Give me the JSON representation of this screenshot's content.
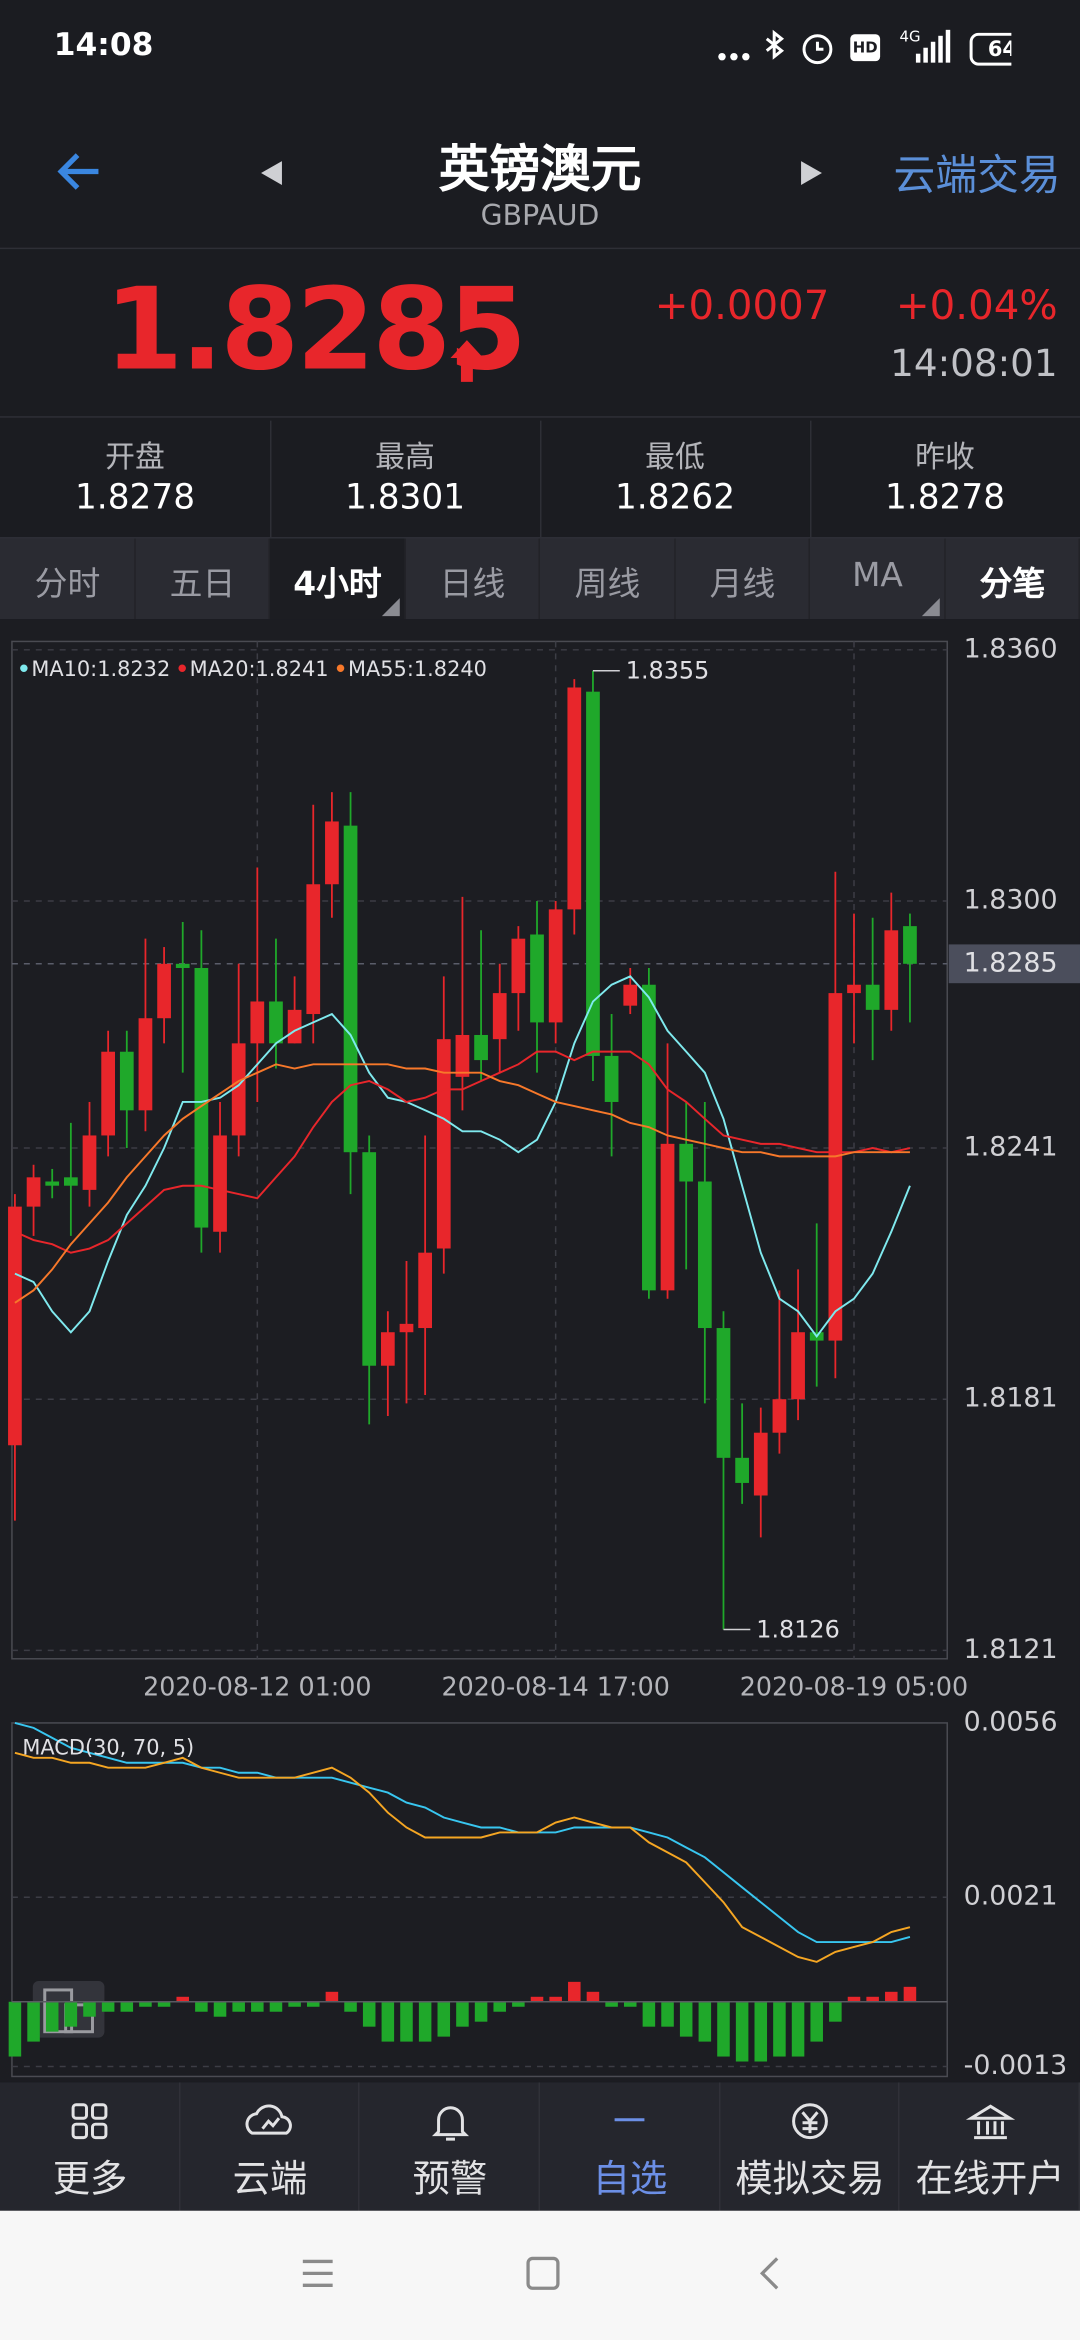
{
  "status_bar": {
    "time": "14:08",
    "network": "4G",
    "hd": "HD",
    "battery": "64"
  },
  "header": {
    "title": "英镑澳元",
    "subtitle": "GBPAUD",
    "action": "云端交易"
  },
  "quote": {
    "price": "1.8285",
    "change": "+0.0007",
    "change_percent": "+0.04%",
    "time": "14:08:01"
  },
  "stats": [
    {
      "label": "开盘",
      "value": "1.8278"
    },
    {
      "label": "最高",
      "value": "1.8301"
    },
    {
      "label": "最低",
      "value": "1.8262"
    },
    {
      "label": "昨收",
      "value": "1.8278"
    }
  ],
  "tabs": [
    "分时",
    "五日",
    "4小时",
    "日线",
    "周线",
    "月线",
    "MA",
    "分笔"
  ],
  "chart_data": [
    {
      "type": "candlestick",
      "categories": [
        null,
        null,
        null,
        null,
        null,
        null,
        null,
        null,
        null,
        null,
        null,
        null,
        null,
        "2020-08-12 01:00",
        null,
        null,
        null,
        null,
        null,
        null,
        null,
        null,
        null,
        null,
        null,
        null,
        null,
        null,
        null,
        "2020-08-14 17:00",
        null,
        null,
        null,
        null,
        null,
        null,
        null,
        null,
        null,
        null,
        null,
        null,
        null,
        null,
        null,
        "2020-08-19 05:00",
        null,
        null,
        null
      ],
      "open": [
        1.817,
        1.8227,
        1.8233,
        1.8234,
        1.8231,
        1.8244,
        1.8264,
        1.825,
        1.8272,
        1.8285,
        1.8284,
        1.8221,
        1.8244,
        1.8266,
        1.8276,
        1.8266,
        1.8273,
        1.8304,
        1.8318,
        1.824,
        1.8189,
        1.8197,
        1.8198,
        1.8217,
        1.8258,
        1.8268,
        1.8267,
        1.8278,
        1.8292,
        1.8271,
        1.8298,
        1.835,
        1.8263,
        1.8275,
        1.828,
        1.8207,
        1.8242,
        1.8233,
        1.8198,
        1.8167,
        1.8158,
        1.8173,
        1.8181,
        1.8197,
        1.8195,
        1.8278,
        1.828,
        1.8274,
        1.8294
      ],
      "high": [
        1.823,
        1.8237,
        1.8236,
        1.8247,
        1.8252,
        1.8269,
        1.8269,
        1.8291,
        1.8289,
        1.8295,
        1.8293,
        1.8252,
        1.8285,
        1.8308,
        1.8291,
        1.8282,
        1.8323,
        1.8326,
        1.8326,
        1.8244,
        1.8202,
        1.8214,
        1.8244,
        1.8282,
        1.8301,
        1.8293,
        1.8285,
        1.8294,
        1.83,
        1.83,
        1.8353,
        1.8355,
        1.8273,
        1.8284,
        1.8284,
        1.8266,
        1.8252,
        1.8252,
        1.8202,
        1.818,
        1.8179,
        1.8207,
        1.8212,
        1.8223,
        1.8307,
        1.8297,
        1.8296,
        1.8302,
        1.8297
      ],
      "low": [
        1.8152,
        1.822,
        1.8229,
        1.822,
        1.8227,
        1.8239,
        1.8241,
        1.8245,
        1.8266,
        1.8259,
        1.8216,
        1.8216,
        1.8239,
        1.8252,
        1.826,
        1.8266,
        1.8266,
        1.8296,
        1.823,
        1.8175,
        1.8177,
        1.818,
        1.8182,
        1.8211,
        1.825,
        1.8257,
        1.8259,
        1.8269,
        1.8259,
        1.8266,
        1.8292,
        1.8257,
        1.8239,
        1.8273,
        1.8205,
        1.8205,
        1.8212,
        1.818,
        1.8126,
        1.8156,
        1.8148,
        1.8168,
        1.8176,
        1.8184,
        1.8186,
        1.8266,
        1.8262,
        1.8269,
        1.8271
      ],
      "close": [
        1.8227,
        1.8234,
        1.8232,
        1.8232,
        1.8244,
        1.8264,
        1.825,
        1.8272,
        1.8285,
        1.8284,
        1.8222,
        1.8244,
        1.8266,
        1.8276,
        1.8266,
        1.8274,
        1.8304,
        1.8319,
        1.824,
        1.8189,
        1.8197,
        1.8199,
        1.8216,
        1.8267,
        1.8268,
        1.8262,
        1.8278,
        1.8291,
        1.8271,
        1.8298,
        1.8351,
        1.8263,
        1.8252,
        1.828,
        1.8207,
        1.8242,
        1.8233,
        1.8198,
        1.8167,
        1.8161,
        1.8173,
        1.8181,
        1.8197,
        1.8195,
        1.8278,
        1.828,
        1.8274,
        1.8293,
        1.8285
      ],
      "up_color": "#e8262b",
      "down_color": "#1fa82a",
      "series": [
        {
          "name": "MA10:1.8232",
          "color": "#7fe9ee",
          "values": [
            1.8211,
            1.8209,
            1.8202,
            1.8197,
            1.8202,
            1.8214,
            1.8225,
            1.8232,
            1.8241,
            1.8252,
            1.8252,
            1.8253,
            1.8256,
            1.8261,
            1.8266,
            1.8269,
            1.8271,
            1.8273,
            1.8268,
            1.8259,
            1.8253,
            1.8252,
            1.825,
            1.8248,
            1.8245,
            1.8245,
            1.8243,
            1.824,
            1.8243,
            1.8252,
            1.8266,
            1.8276,
            1.828,
            1.8282,
            1.8277,
            1.8269,
            1.8264,
            1.8259,
            1.8248,
            1.8232,
            1.8216,
            1.8205,
            1.8202,
            1.8196,
            1.8202,
            1.8205,
            1.8211,
            1.8221,
            1.8232
          ]
        },
        {
          "name": "MA20:1.8241",
          "color": "#e8262b",
          "values": [
            1.8221,
            1.8219,
            1.8218,
            1.8216,
            1.8217,
            1.8219,
            1.8223,
            1.8227,
            1.8231,
            1.8232,
            1.8232,
            1.8231,
            1.823,
            1.8229,
            1.8234,
            1.8239,
            1.8246,
            1.8252,
            1.8256,
            1.8257,
            1.8255,
            1.8252,
            1.8253,
            1.8255,
            1.8255,
            1.8257,
            1.8259,
            1.8261,
            1.8264,
            1.8264,
            1.8262,
            1.8264,
            1.8264,
            1.8264,
            1.8261,
            1.8255,
            1.8252,
            1.8248,
            1.8244,
            1.8243,
            1.8242,
            1.8242,
            1.8241,
            1.824,
            1.824,
            1.824,
            1.8241,
            1.824,
            1.8241
          ]
        },
        {
          "name": "MA55:1.8240",
          "color": "#f7782a",
          "values": [
            1.8204,
            1.8207,
            1.8212,
            1.8218,
            1.8223,
            1.8228,
            1.8234,
            1.8239,
            1.8244,
            1.8248,
            1.8251,
            1.8254,
            1.8257,
            1.8259,
            1.8261,
            1.826,
            1.8261,
            1.8261,
            1.8261,
            1.8261,
            1.8261,
            1.826,
            1.826,
            1.8259,
            1.8259,
            1.8259,
            1.8257,
            1.8256,
            1.8254,
            1.8252,
            1.8251,
            1.825,
            1.8249,
            1.8247,
            1.8246,
            1.8244,
            1.8243,
            1.8242,
            1.8241,
            1.824,
            1.824,
            1.8239,
            1.8239,
            1.8239,
            1.8239,
            1.824,
            1.824,
            1.824,
            1.824
          ]
        }
      ],
      "ylim": [
        1.8119,
        1.8362
      ],
      "yticks": [
        {
          "value": 1.836,
          "label": "1.8360"
        },
        {
          "value": 1.83,
          "label": "1.8300"
        },
        1.8241,
        1.8181,
        1.8121
      ],
      "last_price": 1.8285,
      "max_marker": 1.8355,
      "min_marker": 1.8126,
      "grid": true
    },
    {
      "type": "macd",
      "title": "MACD(30, 70, 5)",
      "values": [
        -0.0011,
        -0.0008,
        -0.0006,
        -0.0005,
        -0.0003,
        -0.0002,
        -0.0002,
        -0.0001,
        -0.0001,
        0.0001,
        -0.0002,
        -0.0003,
        -0.0002,
        -0.0002,
        -0.0002,
        -0.0001,
        -0.0001,
        0.0002,
        -0.0002,
        -0.0005,
        -0.0008,
        -0.0008,
        -0.0008,
        -0.0007,
        -0.0005,
        -0.0004,
        -0.0002,
        -0.0001,
        0.0001,
        0.0001,
        0.0004,
        0.0002,
        -0.0001,
        -0.0001,
        -0.0005,
        -0.0005,
        -0.0007,
        -0.0008,
        -0.0011,
        -0.0012,
        -0.0012,
        -0.0011,
        -0.0011,
        -0.0008,
        -0.0004,
        0.0001,
        0.0001,
        0.0002,
        0.0003
      ],
      "up_color": "#e8262b",
      "down_color": "#1fa82a",
      "series": [
        {
          "color": "#38c6f0",
          "values": [
            0.0056,
            0.0055,
            0.0053,
            0.0051,
            0.005,
            0.0049,
            0.0048,
            0.0048,
            0.0048,
            0.0048,
            0.0047,
            0.0047,
            0.0046,
            0.0046,
            0.0045,
            0.0045,
            0.0045,
            0.0045,
            0.0044,
            0.0043,
            0.0042,
            0.004,
            0.0039,
            0.0037,
            0.0036,
            0.0035,
            0.0035,
            0.0034,
            0.0034,
            0.0034,
            0.0035,
            0.0035,
            0.0035,
            0.0035,
            0.0034,
            0.0033,
            0.0031,
            0.0029,
            0.0026,
            0.0023,
            0.002,
            0.0017,
            0.0014,
            0.0012,
            0.0012,
            0.0012,
            0.0012,
            0.0012,
            0.0013
          ]
        },
        {
          "color": "#f5a623",
          "values": [
            0.005,
            0.0049,
            0.0049,
            0.0048,
            0.0048,
            0.0047,
            0.0047,
            0.0047,
            0.0048,
            0.0049,
            0.0047,
            0.0046,
            0.0045,
            0.0045,
            0.0045,
            0.0045,
            0.0046,
            0.0047,
            0.0045,
            0.0042,
            0.0038,
            0.0035,
            0.0033,
            0.0033,
            0.0033,
            0.0033,
            0.0034,
            0.0034,
            0.0034,
            0.0036,
            0.0037,
            0.0036,
            0.0035,
            0.0035,
            0.0032,
            0.003,
            0.0028,
            0.0024,
            0.002,
            0.0015,
            0.0013,
            0.0011,
            0.0009,
            0.0008,
            0.001,
            0.0011,
            0.0012,
            0.0014,
            0.0015
          ]
        }
      ],
      "ylim": [
        -0.0015,
        0.0056
      ],
      "yticks": [
        0.0056,
        0.0021,
        -0.0013
      ],
      "grid": true
    }
  ],
  "nav": [
    "更多",
    "云端",
    "预警",
    "自选",
    "模拟交易",
    "在线开户"
  ]
}
